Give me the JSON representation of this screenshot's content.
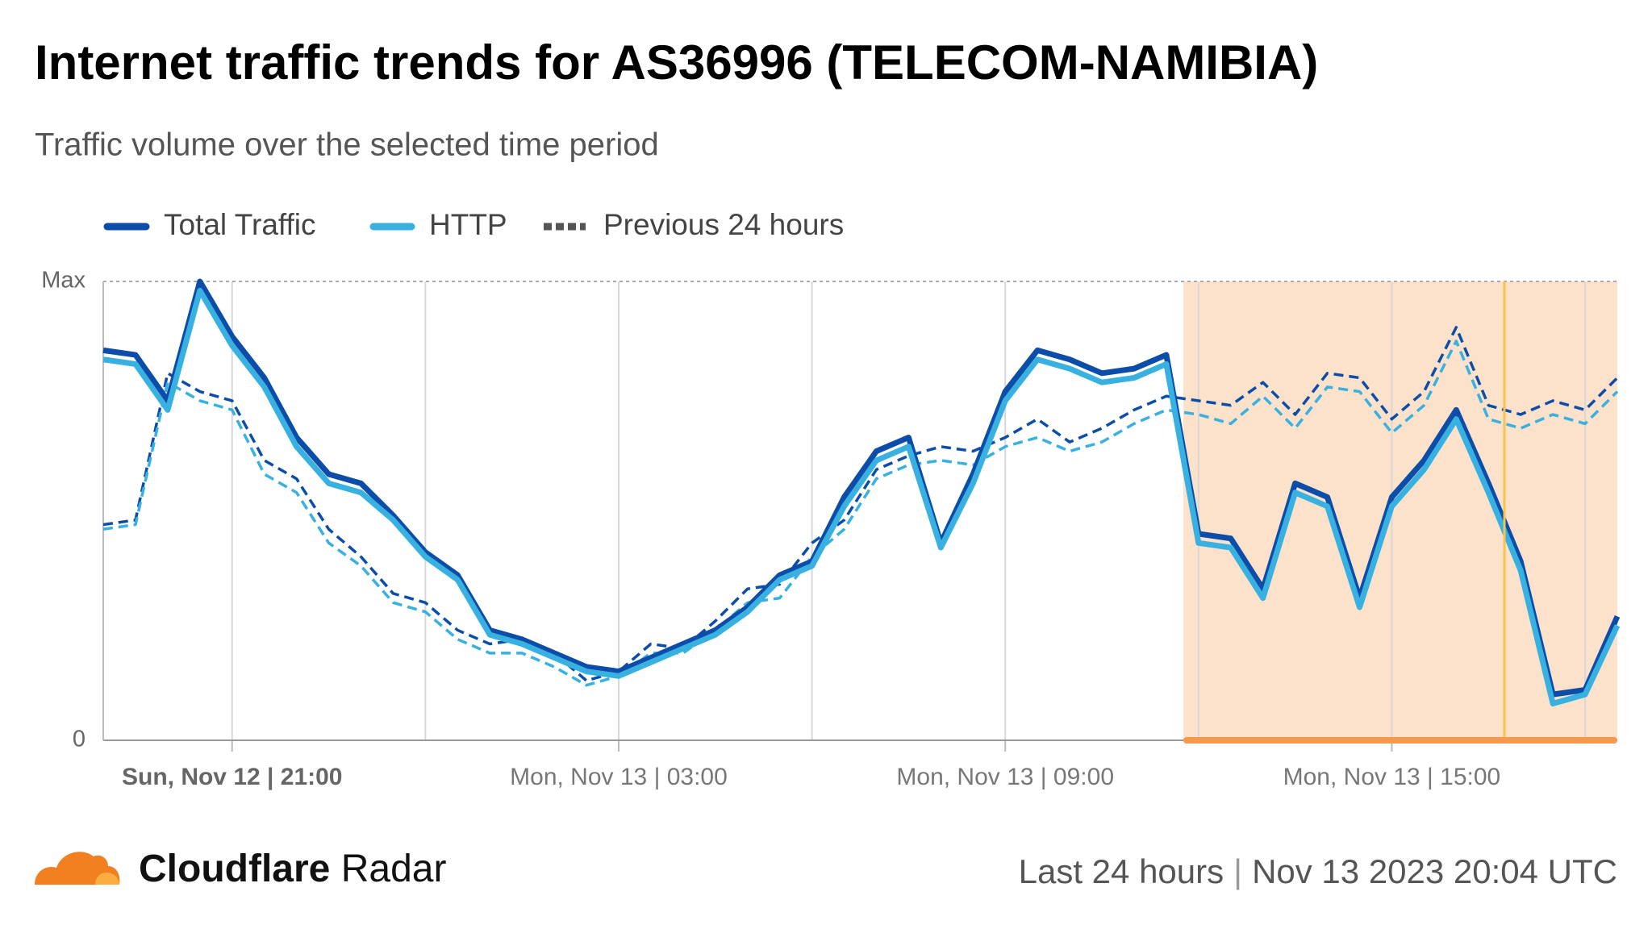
{
  "title": "Internet traffic trends for AS36996 (TELECOM-NAMIBIA)",
  "subtitle": "Traffic volume over the selected time period",
  "chart_data": {
    "type": "line",
    "categories": [
      null,
      null,
      null,
      null,
      "Sun, Nov 12 | 21:00",
      null,
      null,
      null,
      null,
      null,
      null,
      null,
      null,
      null,
      null,
      null,
      "Mon, Nov 13 | 03:00",
      null,
      null,
      null,
      null,
      null,
      null,
      null,
      null,
      null,
      null,
      null,
      "Mon, Nov 13 | 09:00",
      null,
      null,
      null,
      null,
      null,
      null,
      null,
      null,
      null,
      null,
      null,
      "Mon, Nov 13 | 15:00",
      null,
      null,
      null,
      null,
      null,
      null,
      null
    ],
    "series": [
      {
        "name": "Total Traffic",
        "color": "#0b4da8",
        "values": [
          85,
          84,
          74,
          100,
          88,
          79,
          66,
          58,
          56,
          49,
          41,
          36,
          24,
          22,
          19,
          16,
          15,
          18,
          21,
          24,
          29,
          36,
          39,
          53,
          63,
          66,
          43,
          58,
          76,
          85,
          83,
          80,
          81,
          84,
          45,
          44,
          33,
          56,
          53,
          31,
          53,
          61,
          72,
          56,
          39,
          10,
          11,
          27
        ],
        "previous_values": [
          47,
          48,
          80,
          76,
          74,
          61,
          57,
          46,
          40,
          32,
          30,
          24,
          21,
          22,
          19,
          13,
          15,
          21,
          20,
          26,
          33,
          34,
          43,
          48,
          59,
          62,
          64,
          63,
          66,
          70,
          65,
          68,
          72,
          75,
          74,
          73,
          78,
          71,
          80,
          79,
          70,
          76,
          90,
          73,
          71,
          74,
          72,
          79
        ]
      },
      {
        "name": "HTTP",
        "color": "#38b1e0",
        "values": [
          83,
          82,
          72,
          98,
          86,
          77,
          64,
          56,
          54,
          48,
          40,
          35,
          23,
          21,
          18,
          15,
          14,
          17,
          20,
          23,
          28,
          35,
          38,
          51,
          61,
          64,
          42,
          56,
          74,
          83,
          81,
          78,
          79,
          82,
          43,
          42,
          31,
          54,
          51,
          29,
          51,
          59,
          70,
          54,
          37,
          8,
          10,
          25
        ],
        "previous_values": [
          46,
          47,
          78,
          74,
          72,
          58,
          54,
          43,
          38,
          30,
          28,
          22,
          19,
          19,
          16,
          12,
          14,
          19,
          19,
          24,
          30,
          31,
          40,
          46,
          57,
          60,
          61,
          60,
          64,
          66,
          63,
          65,
          69,
          72,
          71,
          69,
          75,
          68,
          77,
          76,
          67,
          73,
          87,
          70,
          68,
          71,
          69,
          76
        ]
      }
    ],
    "previous_label": "Previous 24 hours",
    "ylim": [
      0,
      100
    ],
    "yticks": [
      {
        "value": 100,
        "label": "Max"
      },
      0
    ],
    "grid": true
  },
  "footer": {
    "brand": "Cloudflare",
    "product": "Radar",
    "period": "Last 24 hours",
    "timestamp": "Nov 13 2023 20:04 UTC"
  }
}
